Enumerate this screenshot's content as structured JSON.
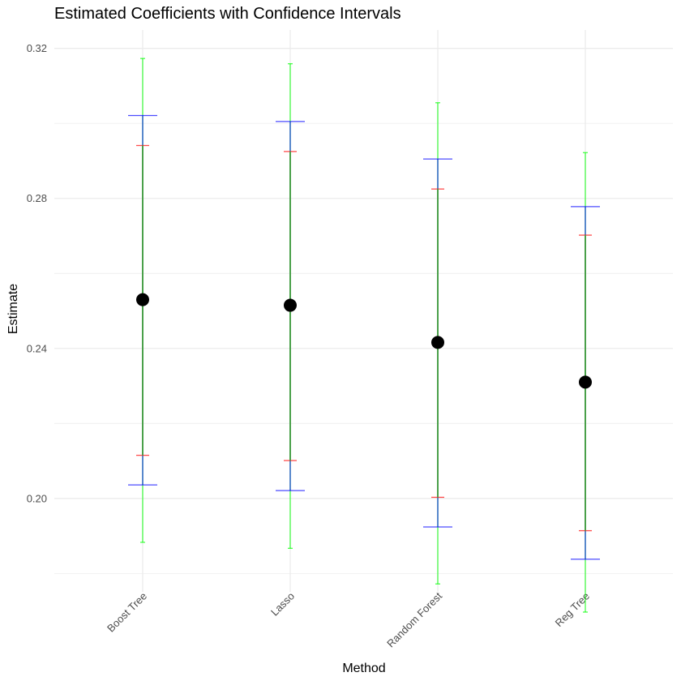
{
  "chart_data": {
    "type": "errorbar",
    "title": "Estimated Coefficients with Confidence Intervals",
    "xlabel": "Method",
    "ylabel": "Estimate",
    "categories": [
      "Boost Tree",
      "Lasso",
      "Random Forest",
      "Reg Tree"
    ],
    "estimates": [
      0.253,
      0.2515,
      0.2416,
      0.231
    ],
    "intervals": [
      {
        "color": "#ff0000",
        "lower": [
          0.2115,
          0.2101,
          0.2003,
          0.1914
        ],
        "upper": [
          0.2941,
          0.2925,
          0.2825,
          0.2702
        ]
      },
      {
        "color": "#0000ff",
        "lower": [
          0.2036,
          0.2021,
          0.1924,
          0.1838
        ],
        "upper": [
          0.3021,
          0.3005,
          0.2905,
          0.2778
        ]
      },
      {
        "color": "#00ff00",
        "lower": [
          0.1883,
          0.1867,
          0.1772,
          0.1697
        ],
        "upper": [
          0.3173,
          0.3159,
          0.3055,
          0.2922
        ]
      }
    ],
    "ylim": [
      0.1751,
      0.3249
    ],
    "yticks": [
      0.2,
      0.24,
      0.28,
      0.32
    ],
    "ytick_labels": [
      "0.20",
      "0.24",
      "0.28",
      "0.32"
    ],
    "grid": true,
    "x_tick_rotation_deg": 45,
    "point_color": "#000000",
    "segment_color": "#4aa04a",
    "grid_color": "#ebebeb"
  }
}
